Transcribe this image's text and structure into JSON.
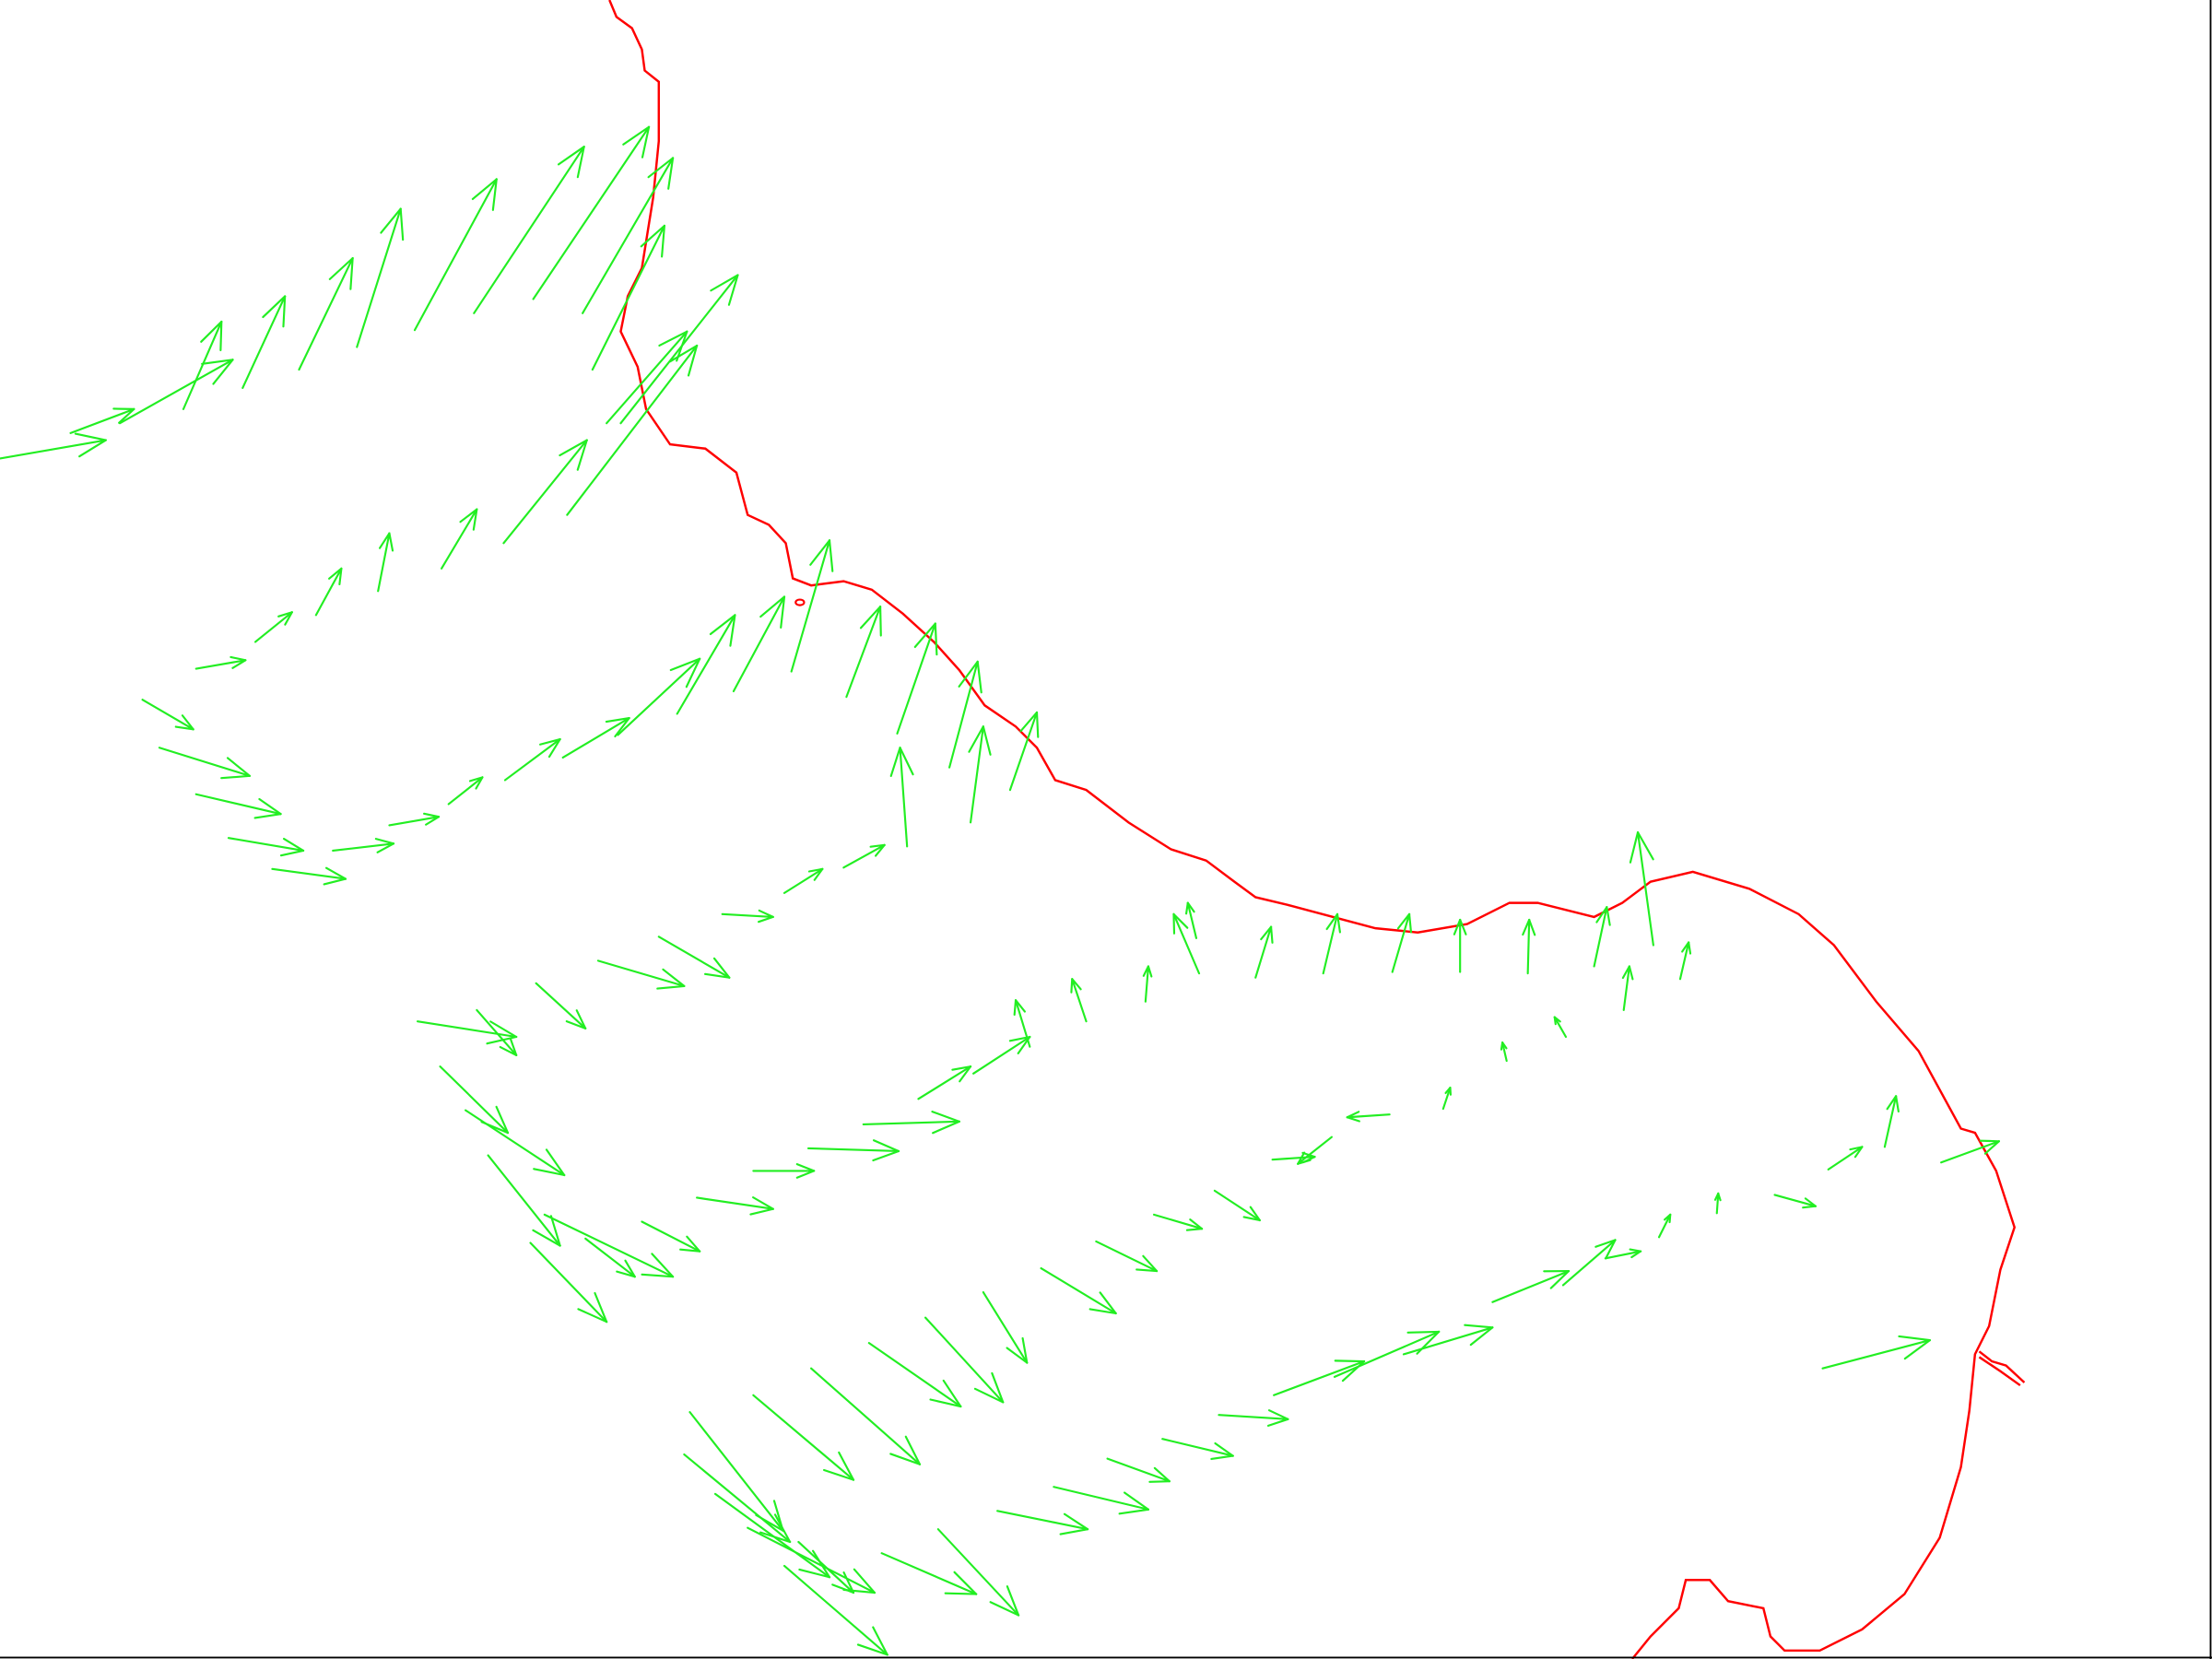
{
  "chart_data": {
    "type": "quiver",
    "title": "",
    "xlabel": "",
    "ylabel": "",
    "grid": false,
    "legend": "none",
    "layers": [
      {
        "kind": "vector-field",
        "color": "#22ee22"
      },
      {
        "kind": "coastline",
        "color": "#ff0000"
      }
    ],
    "frame_color": "#000000",
    "background": "#ffffff"
  }
}
